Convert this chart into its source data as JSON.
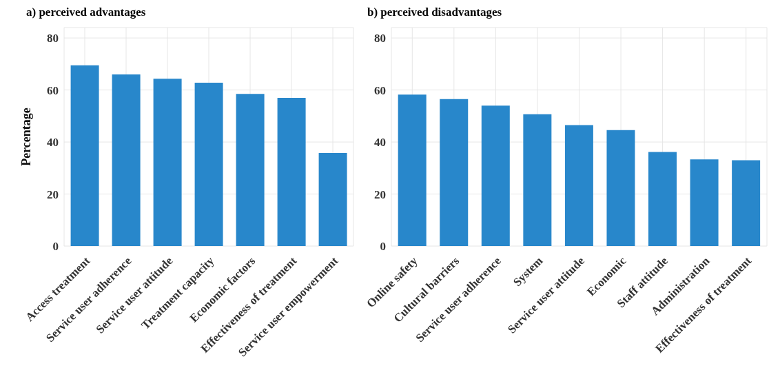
{
  "chart_data": [
    {
      "type": "bar",
      "title": "a) perceived advantages",
      "ylabel": "Percentage",
      "categories": [
        "Access treatment",
        "Service user adherence",
        "Service user attitude",
        "Treatment capacity",
        "Economic factors",
        "Effectiveness of treatment",
        "Service user empowerment"
      ],
      "values": [
        69.5,
        66,
        64.3,
        62.8,
        58.5,
        57,
        35.8
      ],
      "color": "#2887cb",
      "ylim": [
        0,
        84
      ],
      "yticks": [
        0,
        20,
        40,
        60,
        80
      ],
      "grid": true
    },
    {
      "type": "bar",
      "title": "b) perceived disadvantages",
      "categories": [
        "Online safety",
        "Cultural barriers",
        "Service user adherence",
        "System",
        "Service user attitude",
        "Economic",
        "Staff attitude",
        "Administration",
        "Effectiveness of treatment"
      ],
      "values": [
        58.2,
        56.5,
        54,
        50.7,
        46.5,
        44.6,
        36.2,
        33.3,
        33
      ],
      "color": "#2887cb",
      "ylim": [
        0,
        84
      ],
      "yticks": [
        0,
        20,
        40,
        60,
        80
      ],
      "grid": true
    }
  ]
}
